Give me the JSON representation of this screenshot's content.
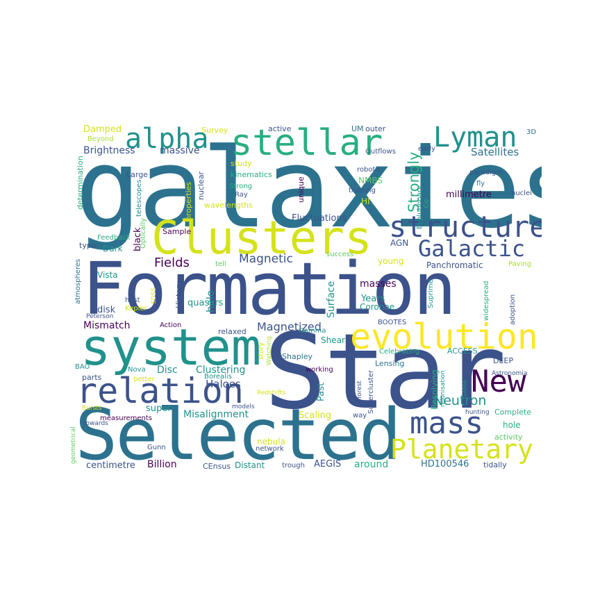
{
  "palette": {
    "c1": "#440154",
    "c2": "#3b528b",
    "c3": "#2c728e",
    "c4": "#21918c",
    "c5": "#28ae80",
    "c6": "#5ec962",
    "c7": "#addc30",
    "c8": "#d5e21a",
    "c9": "#fde725"
  },
  "words": {
    "galaxies": "galaxies",
    "formation": "Formation",
    "star": "Star",
    "selected": "Selected",
    "system": "system",
    "clusters": "Clusters",
    "stellar": "stellar",
    "relation": "relation",
    "evolution": "evolution",
    "structure": "structure",
    "alpha": "alpha",
    "lyman": "Lyman",
    "mass": "mass",
    "new": "New",
    "galactic": "Galactic",
    "planetary": "Planetary",
    "neutron": "Neutron",
    "magnetized": "Magnetized",
    "magnetic": "Magnetic",
    "fields": "Fields",
    "strongly": "Strongly",
    "satellites": "Satellites",
    "brightness": "Brightness",
    "massive": "massive",
    "damped": "Damped",
    "survey": "Survey",
    "active": "active",
    "um": "UM",
    "outer": "outer",
    "d3": "3D",
    "beyond": "Beyond",
    "determination": "determination",
    "large": "Large",
    "nuclear": "nuclear",
    "study": "study",
    "kinematics": "kinematics",
    "strong": "Strong",
    "ray": "Ray",
    "properties": "properties",
    "nmbs": "NMBS",
    "hi": "HI",
    "unique": "unique",
    "robotic": "robotic",
    "trusting": "trusting",
    "outflows": "Outflows",
    "early": "early",
    "fly": "fly",
    "nuclei": "nuclei",
    "millimetre": "millimetre",
    "evolutionary": "Evolutionary",
    "co": "Co",
    "telescopes": "telescopes",
    "wavelengths": "wavelengths",
    "fluctuations": "Fluctuations",
    "sample": "Sample",
    "feedback": "Feedback",
    "optically": "Optically",
    "type": "type",
    "dark": "Dark",
    "black": "black",
    "agn": "AGN",
    "young": "young",
    "success": "success",
    "panchromatic": "Panchromatic",
    "paving": "Paving",
    "tell": "tell",
    "atmospheres": "atmospheres",
    "vista": "Vista",
    "history": "History",
    "sdss": "SDSS",
    "host": "host",
    "halo": "halo",
    "surface": "Surface",
    "masses": "masses",
    "years": "Years",
    "coronae": "Coronae",
    "suprime": "Suprime",
    "widespread": "widespread",
    "adoption": "adoption",
    "disk": "disk",
    "kepler": "Kepler",
    "peterson": "Peterson",
    "quasars": "quasars",
    "mismatch": "Mismatch",
    "action": "Action",
    "relaxed": "relaxed",
    "bootes": "BOOTES",
    "story": "story",
    "gamma": "Gamma",
    "shear": "Shear",
    "watching": "Watching",
    "celebrating": "Celebrating",
    "access": "ACCESS",
    "bao": "BAO",
    "nova": "Nova",
    "disc": "Disc",
    "clustering": "Clustering",
    "shapley": "Shapley",
    "working": "working",
    "better": "better",
    "parts": "parts",
    "haloes": "Haloes",
    "borealis": "Borealis",
    "lensing": "Lensing",
    "deep": "DEEP",
    "astronomia": "Astronomia",
    "resolving": "Resolving",
    "reionisation": "reionisation",
    "gama": "GAMA",
    "supercluster": "Supercluster",
    "forest": "forest",
    "past": "Past",
    "redshifts": "Redshifts",
    "bursts": "Bursts",
    "towards": "towards",
    "super": "super",
    "models": "models",
    "measurements": "measurements",
    "misalignment": "Misalignment",
    "scaling": "Scaling",
    "way": "way",
    "hunting": "hunting",
    "complete": "Complete",
    "geometrical": "geometrical",
    "hole": "hole",
    "activity": "activity",
    "nebula": "nebula",
    "gunn": "Gunn",
    "network": "network",
    "centimetre": "centimetre",
    "billion": "Billion",
    "census": "CEnsus",
    "distant": "Distant",
    "trough": "trough",
    "aegis": "AEGIS",
    "around": "around",
    "hd100546": "HD100546",
    "tidally": "tidally",
    "paradigm": "paradigm"
  }
}
